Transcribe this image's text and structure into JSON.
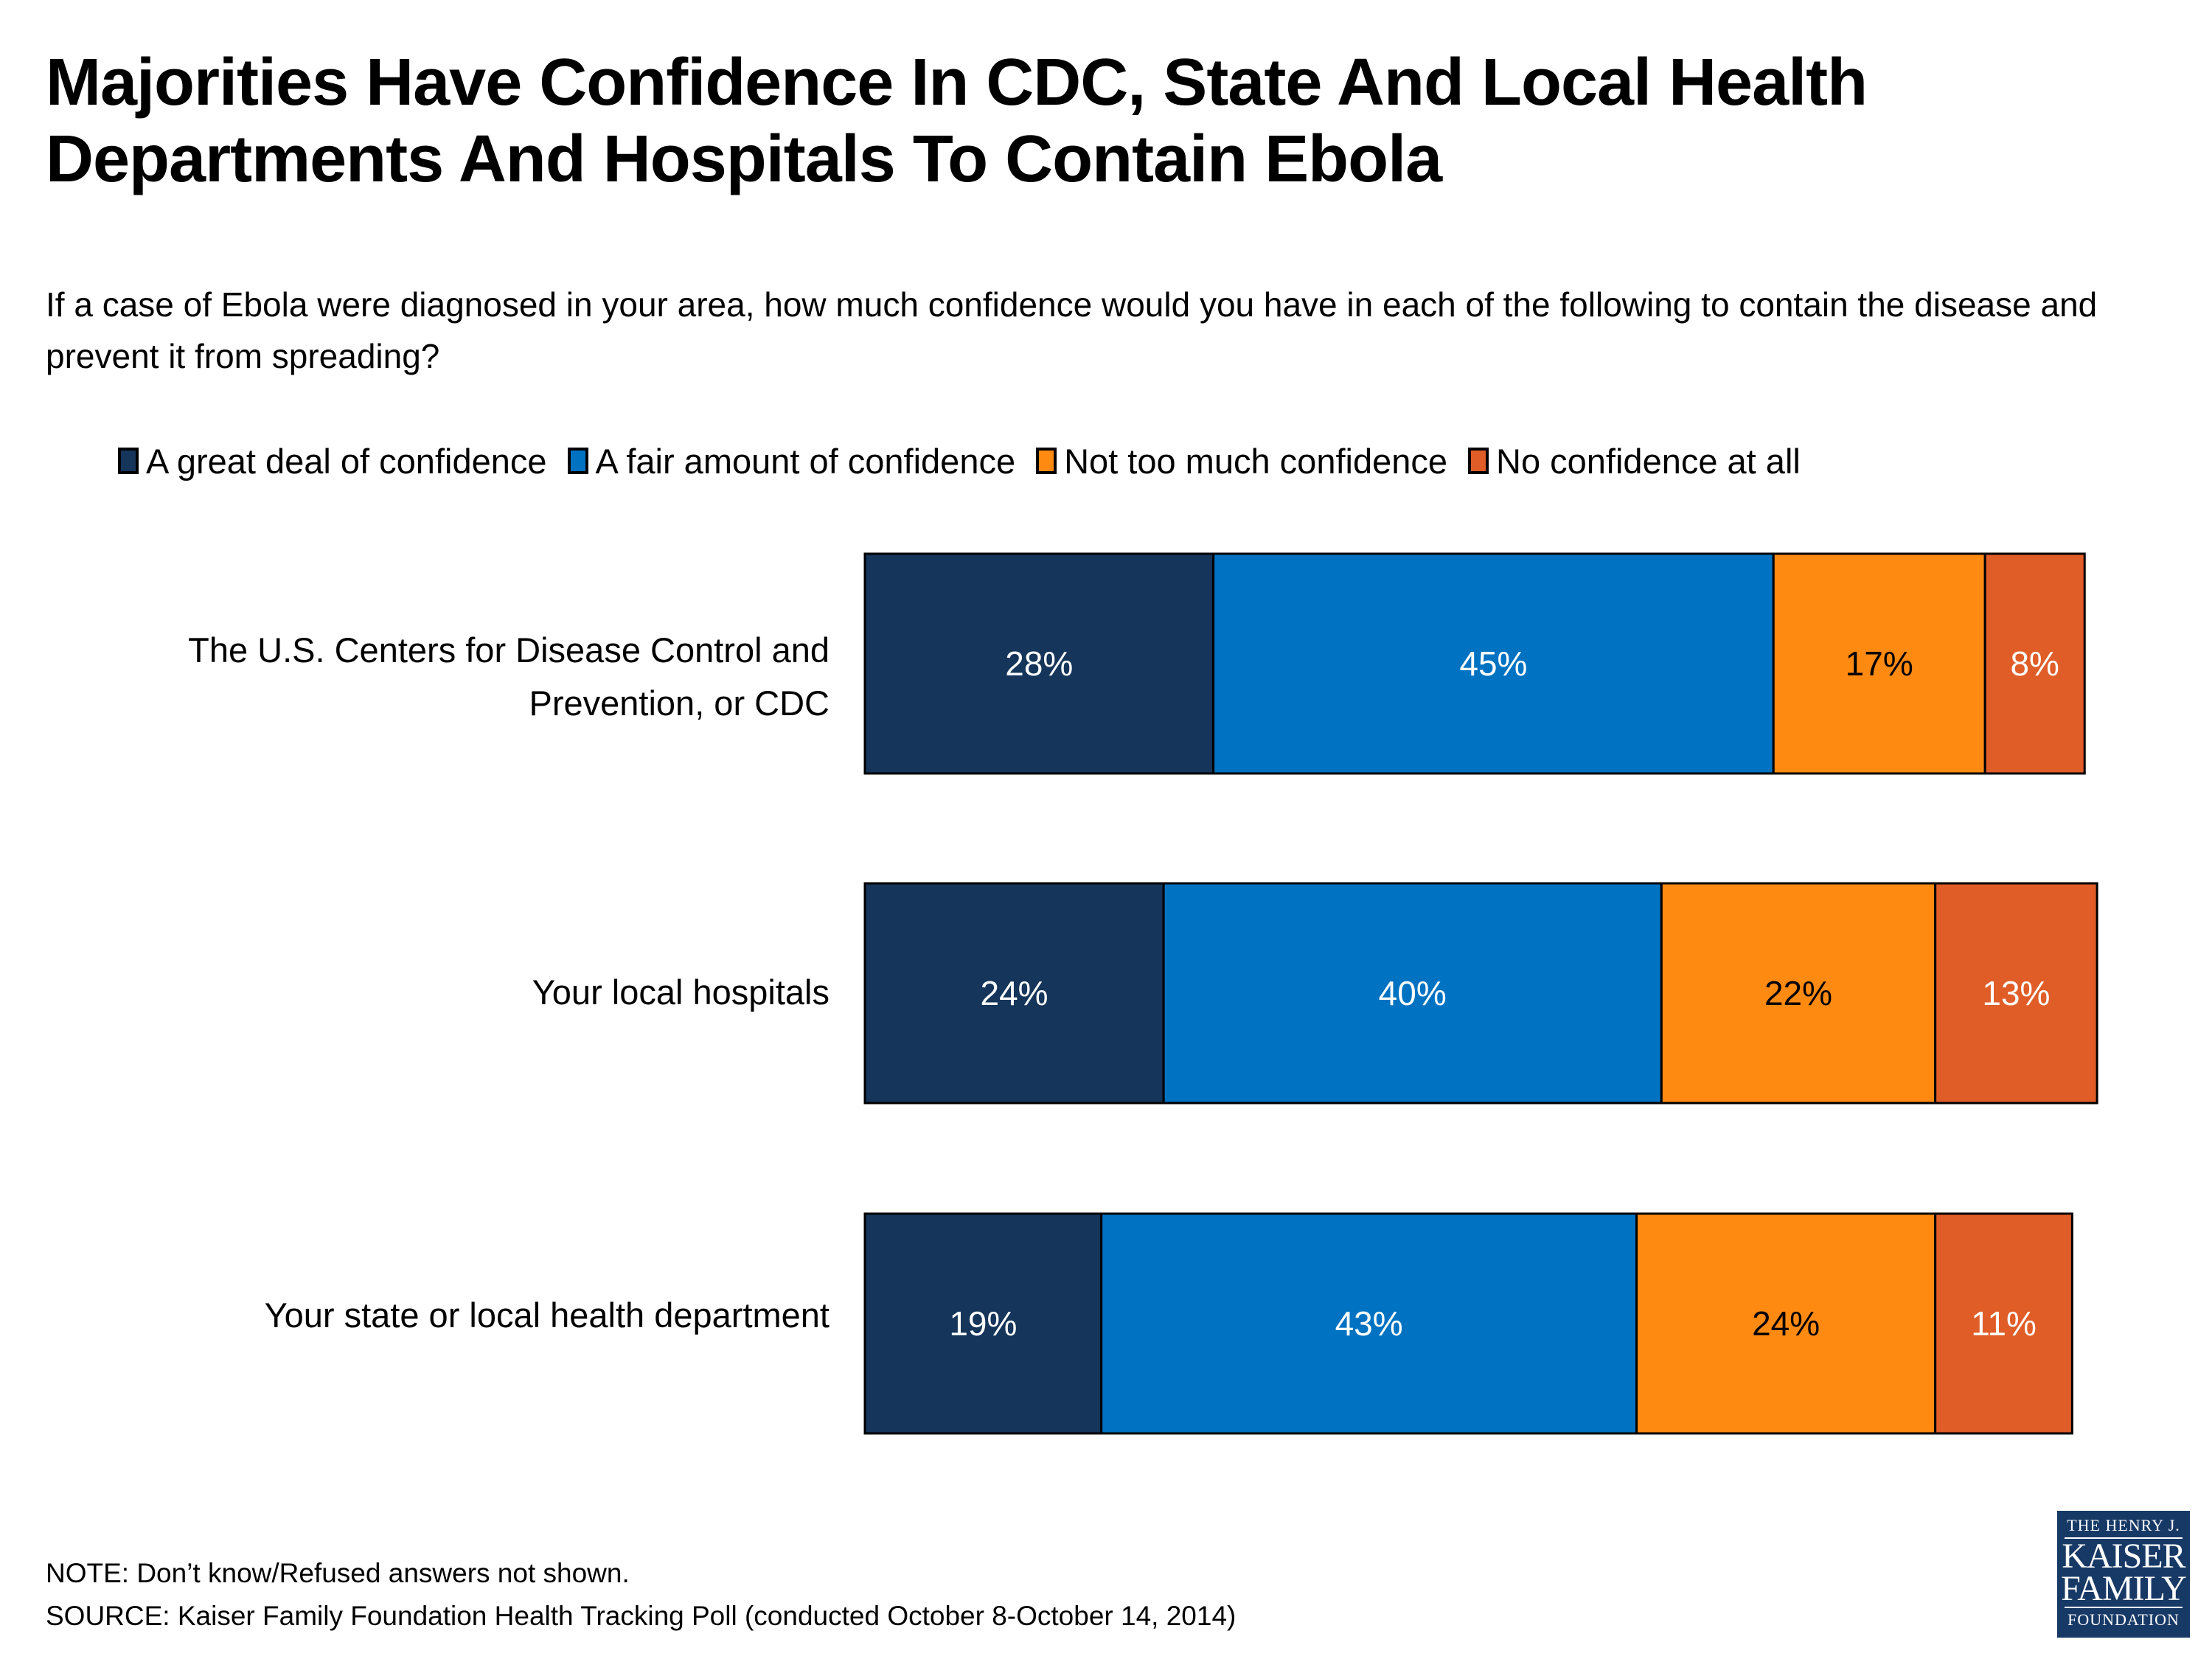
{
  "title": "Majorities Have Confidence In CDC, State And Local Health Departments And Hospitals To Contain Ebola",
  "subtitle": "If a case of Ebola were diagnosed in your area, how much confidence would you have in each of the following to contain the disease and prevent it from spreading?",
  "footer": {
    "note": "NOTE: Don’t know/Refused answers not shown.",
    "source": "SOURCE: Kaiser Family Foundation Health Tracking Poll (conducted October 8-October 14, 2014)"
  },
  "logo": {
    "line1": "THE HENRY J.",
    "line2": "KAISER",
    "line3": "FAMILY",
    "line4": "FOUNDATION"
  },
  "chart_data": {
    "type": "bar",
    "orientation": "horizontal",
    "stacked": true,
    "title": "Majorities Have Confidence In CDC, State And Local Health Departments And Hospitals To Contain Ebola",
    "xlabel": "",
    "ylabel": "",
    "xlim": [
      0,
      100
    ],
    "grid": false,
    "legend_position": "top",
    "categories": [
      "The U.S. Centers for Disease Control and Prevention, or CDC",
      "Your local hospitals",
      "Your state or local health department"
    ],
    "series": [
      {
        "name": "A great deal of confidence",
        "color": "#15355A",
        "label_color": "#FFFFFF",
        "values": [
          28,
          24,
          19
        ]
      },
      {
        "name": "A fair amount of confidence",
        "color": "#0072C2",
        "label_color": "#FFFFFF",
        "values": [
          45,
          40,
          43
        ]
      },
      {
        "name": "Not too much confidence",
        "color": "#FF8A12",
        "label_color": "#000000",
        "values": [
          17,
          22,
          24
        ]
      },
      {
        "name": "No confidence at all",
        "color": "#E05D28",
        "label_color": "#FFFFFF",
        "values": [
          8,
          13,
          11
        ]
      }
    ],
    "value_suffix": "%"
  }
}
